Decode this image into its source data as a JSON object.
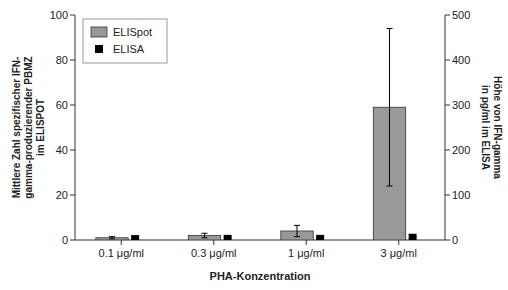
{
  "chart_data": {
    "type": "bar",
    "categories": [
      "0.1 μg/ml",
      "0.3 μg/ml",
      "1 μg/ml",
      "3 μg/ml"
    ],
    "xlabel": "PHA-Konzentration",
    "ylabel": "Mittlere Zahl spezifischer IFN-\ngamma-produzierender PBMZ\nim ELISPOT",
    "y2label": "Höhe von IFN-gamma\nin pg/ml im ELISA",
    "ylim": [
      0,
      100
    ],
    "yticks": [
      0,
      20,
      40,
      60,
      80,
      100
    ],
    "y2lim": [
      0,
      500
    ],
    "y2ticks": [
      0,
      100,
      200,
      300,
      400,
      500
    ],
    "legend": "upper left",
    "series": [
      {
        "name": "ELISpot",
        "type": "bar",
        "color": "#999999",
        "values": [
          1.0,
          2.0,
          4.0,
          59.0
        ],
        "errors": [
          0.5,
          1.0,
          2.5,
          35.0
        ]
      },
      {
        "name": "ELISA",
        "type": "scatter",
        "axis": "y2",
        "color": "#000000",
        "marker": "square",
        "values": [
          2.0,
          2.5,
          2.5,
          5.0
        ],
        "errors": [
          1.0,
          1.0,
          1.0,
          2.0
        ]
      }
    ]
  }
}
